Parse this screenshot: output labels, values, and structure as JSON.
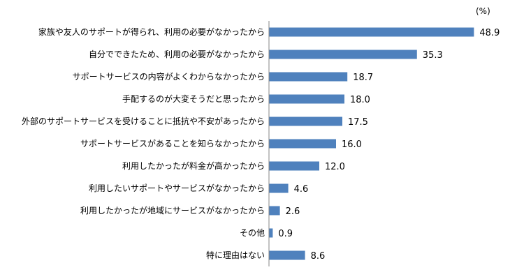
{
  "chart_data": {
    "type": "bar",
    "orientation": "horizontal",
    "unit_label": "(%)",
    "categories": [
      "家族や友人のサポートが得られ、利用の必要がなかったから",
      "自分でできたため、利用の必要がなかったから",
      "サポートサービスの内容がよくわからなかったから",
      "手配するのが大変そうだと思ったから",
      "外部のサポートサービスを受けることに抵抗や不安があったから",
      "サポートサービスがあることを知らなかったから",
      "利用したかったが料金が高かったから",
      "利用したいサポートやサービスがなかったから",
      "利用したかったが地域にサービスがなかったから",
      "その他",
      "特に理由はない"
    ],
    "values": [
      48.9,
      35.3,
      18.7,
      18.0,
      17.5,
      16.0,
      12.0,
      4.6,
      2.6,
      0.9,
      8.6
    ],
    "value_labels": [
      "48.9",
      "35.3",
      "18.7",
      "18.0",
      "17.5",
      "16.0",
      "12.0",
      "4.6",
      "2.6",
      "0.9",
      "8.6"
    ],
    "xlim": [
      0,
      50
    ],
    "grid": false,
    "bar_color": "#4F81BD",
    "axis_color": "#868686"
  }
}
